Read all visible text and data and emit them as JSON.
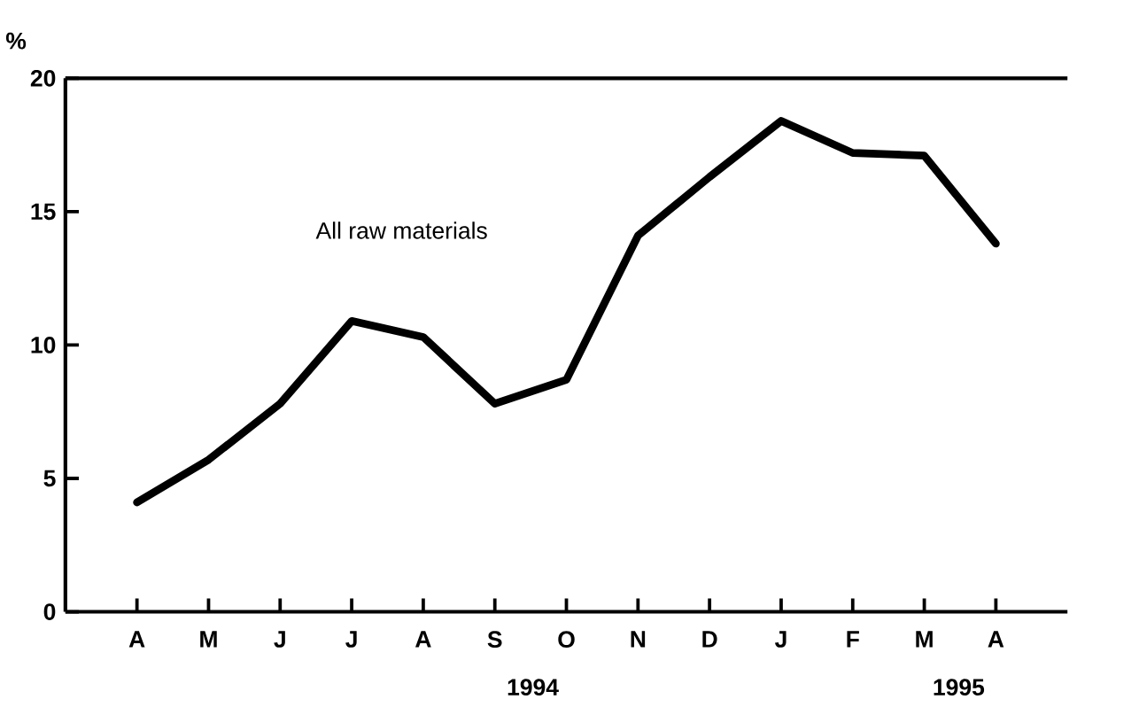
{
  "chart_data": {
    "type": "line",
    "ylabel": "%",
    "categories": [
      "A",
      "M",
      "J",
      "J",
      "A",
      "S",
      "O",
      "N",
      "D",
      "J",
      "F",
      "M",
      "A"
    ],
    "series": [
      {
        "name": "All raw materials",
        "color": "#000000",
        "values": [
          4.1,
          5.7,
          7.8,
          10.9,
          10.3,
          7.8,
          8.7,
          14.1,
          16.3,
          18.4,
          17.2,
          17.1,
          13.8
        ]
      }
    ],
    "annotations": [
      "1994",
      "1995"
    ],
    "ylim": [
      0,
      20
    ],
    "yticks": [
      0,
      5,
      10,
      15,
      20
    ],
    "grid": false,
    "legend": false,
    "marker": "none",
    "line_style": "solid"
  }
}
